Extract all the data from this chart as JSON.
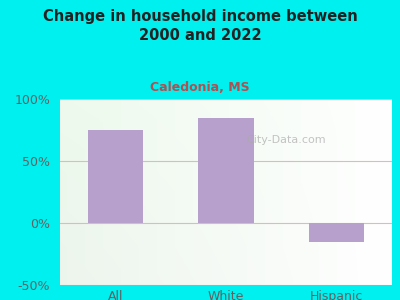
{
  "title": "Change in household income between\n2000 and 2022",
  "subtitle": "Caledonia, MS",
  "categories": [
    "All",
    "White",
    "Hispanic"
  ],
  "values": [
    75,
    85,
    -15
  ],
  "bar_color": "#b8a0cc",
  "background_color": "#00EFEF",
  "title_color": "#222222",
  "subtitle_color": "#b05050",
  "tick_label_color": "#606060",
  "grid_color": "#ddbbbb",
  "ylim": [
    -50,
    100
  ],
  "yticks": [
    -50,
    0,
    50,
    100
  ],
  "ytick_labels": [
    "-50%",
    "0%",
    "50%",
    "100%"
  ],
  "watermark": "City-Data.com",
  "figsize": [
    4.0,
    3.0
  ],
  "dpi": 100
}
